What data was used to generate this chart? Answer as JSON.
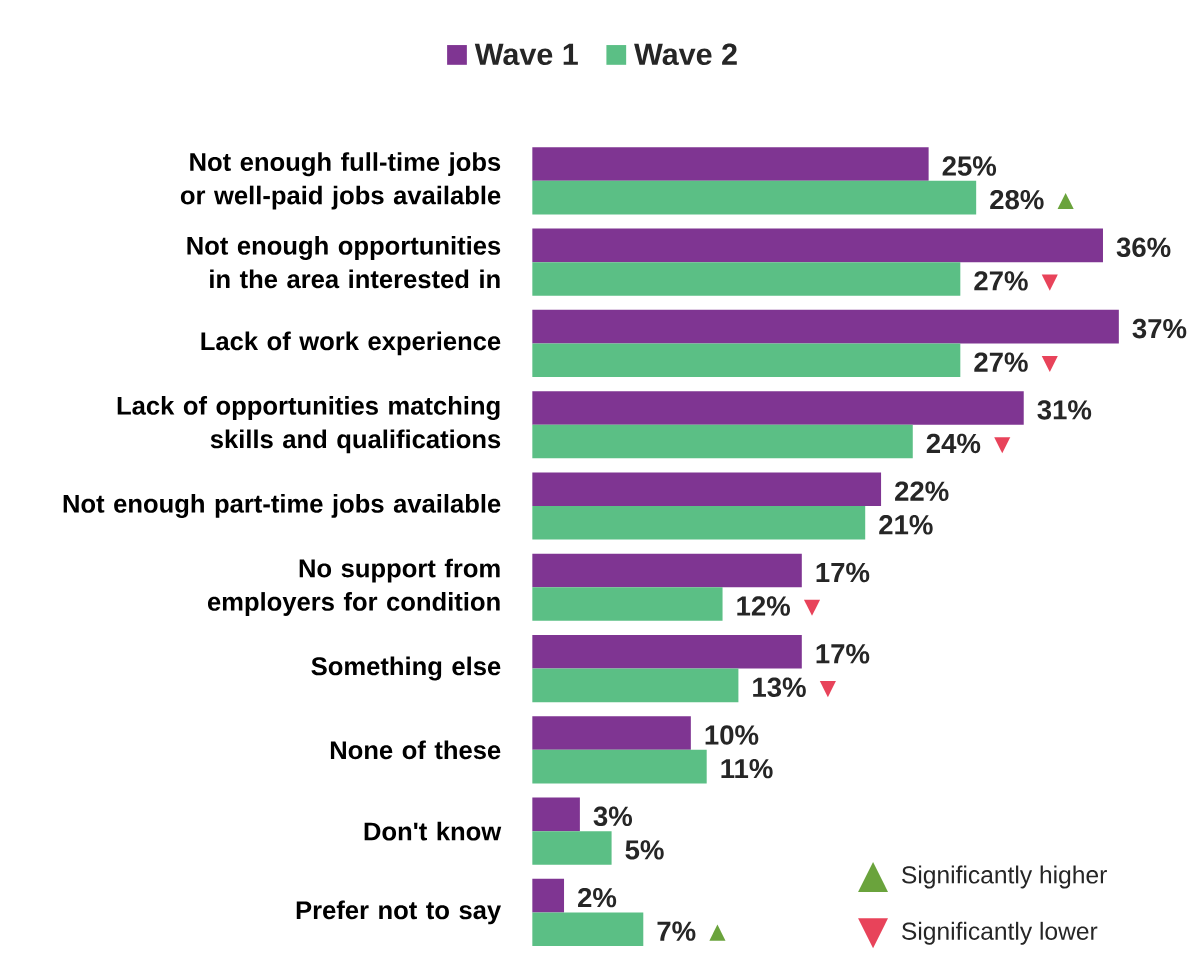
{
  "chart_data": {
    "type": "bar",
    "orientation": "horizontal",
    "legend": "top",
    "categories": [
      "Not enough full-time jobs or well-paid jobs available",
      "Not enough opportunities in the area interested in",
      "Lack of work experience",
      "Lack of opportunities matching skills and qualifications",
      "Not enough part-time jobs available",
      "No support from employers for condition",
      "Something else",
      "None of these",
      "Don't know",
      "Prefer not to say"
    ],
    "series": [
      {
        "name": "Wave 1",
        "color": "#7f3592",
        "values": [
          25,
          36,
          37,
          31,
          22,
          17,
          17,
          10,
          3,
          2
        ],
        "value_labels": [
          "25%",
          "36%",
          "37%",
          "31%",
          "22%",
          "17%",
          "17%",
          "10%",
          "3%",
          "2%"
        ]
      },
      {
        "name": "Wave 2",
        "color": "#5bbf85",
        "values": [
          28,
          27,
          27,
          24,
          21,
          12,
          13,
          11,
          5,
          7
        ],
        "value_labels": [
          "28% ▲",
          "27% ▼",
          "27% ▼",
          "24% ▼",
          "21%",
          "12% ▼",
          "13% ▼",
          "11%",
          "5%",
          "7% ▲"
        ]
      }
    ],
    "annotations": [
      "▲",
      "Significantly higher",
      "▼",
      "Significantly lower"
    ]
  }
}
